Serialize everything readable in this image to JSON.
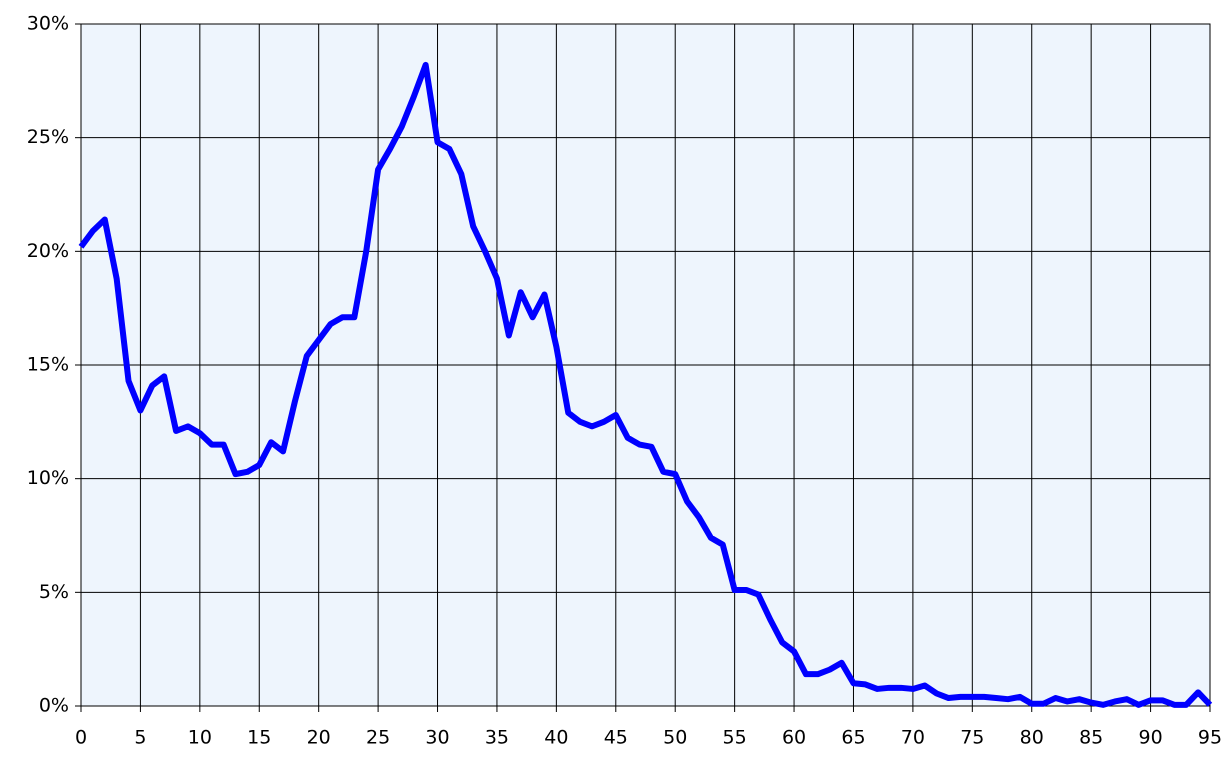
{
  "chart_data": {
    "type": "line",
    "x": [
      0,
      1,
      2,
      3,
      4,
      5,
      6,
      7,
      8,
      9,
      10,
      11,
      12,
      13,
      14,
      15,
      16,
      17,
      18,
      19,
      20,
      21,
      22,
      23,
      24,
      25,
      26,
      27,
      28,
      29,
      30,
      31,
      32,
      33,
      34,
      35,
      36,
      37,
      38,
      39,
      40,
      41,
      42,
      43,
      44,
      45,
      46,
      47,
      48,
      49,
      50,
      51,
      52,
      53,
      54,
      55,
      56,
      57,
      58,
      59,
      60,
      61,
      62,
      63,
      64,
      65,
      66,
      67,
      68,
      69,
      70,
      71,
      72,
      73,
      74,
      75,
      76,
      77,
      78,
      79,
      80,
      81,
      82,
      83,
      84,
      85,
      86,
      87,
      88,
      89,
      90,
      91,
      92,
      93,
      94,
      95
    ],
    "values": [
      20.2,
      20.9,
      21.4,
      18.8,
      14.3,
      13.0,
      14.1,
      14.5,
      12.1,
      12.3,
      12.0,
      11.5,
      11.5,
      10.2,
      10.3,
      10.6,
      11.6,
      11.2,
      13.4,
      15.4,
      16.1,
      16.8,
      17.1,
      17.1,
      20.0,
      23.6,
      24.5,
      25.5,
      26.8,
      28.2,
      24.8,
      24.5,
      23.4,
      21.1,
      20.0,
      18.8,
      16.3,
      18.2,
      17.1,
      18.1,
      15.8,
      12.9,
      12.5,
      12.3,
      12.5,
      12.8,
      11.8,
      11.5,
      11.4,
      10.3,
      10.2,
      9.0,
      8.3,
      7.4,
      7.1,
      5.1,
      5.1,
      4.9,
      3.8,
      2.8,
      2.4,
      1.4,
      1.4,
      1.6,
      1.9,
      1.0,
      0.95,
      0.75,
      0.8,
      0.8,
      0.75,
      0.9,
      0.55,
      0.35,
      0.4,
      0.4,
      0.4,
      0.35,
      0.3,
      0.4,
      0.1,
      0.1,
      0.35,
      0.2,
      0.3,
      0.15,
      0.05,
      0.2,
      0.3,
      0.05,
      0.25,
      0.25,
      0.05,
      0.05,
      0.6,
      0.05
    ],
    "color": "#0000ff",
    "xlim": [
      0,
      95
    ],
    "xticks": [
      0,
      5,
      10,
      15,
      20,
      25,
      30,
      35,
      40,
      45,
      50,
      55,
      60,
      65,
      70,
      75,
      80,
      85,
      90,
      95
    ],
    "ylim": [
      0,
      30
    ],
    "yticks": [
      {
        "value": 0,
        "label": "0%"
      },
      {
        "value": 5,
        "label": "5%"
      },
      {
        "value": 10,
        "label": "10%"
      },
      {
        "value": 15,
        "label": "15%"
      },
      {
        "value": 20,
        "label": "20%"
      },
      {
        "value": 25,
        "label": "25%"
      },
      {
        "value": 30,
        "label": "30%"
      }
    ],
    "grid": true
  }
}
